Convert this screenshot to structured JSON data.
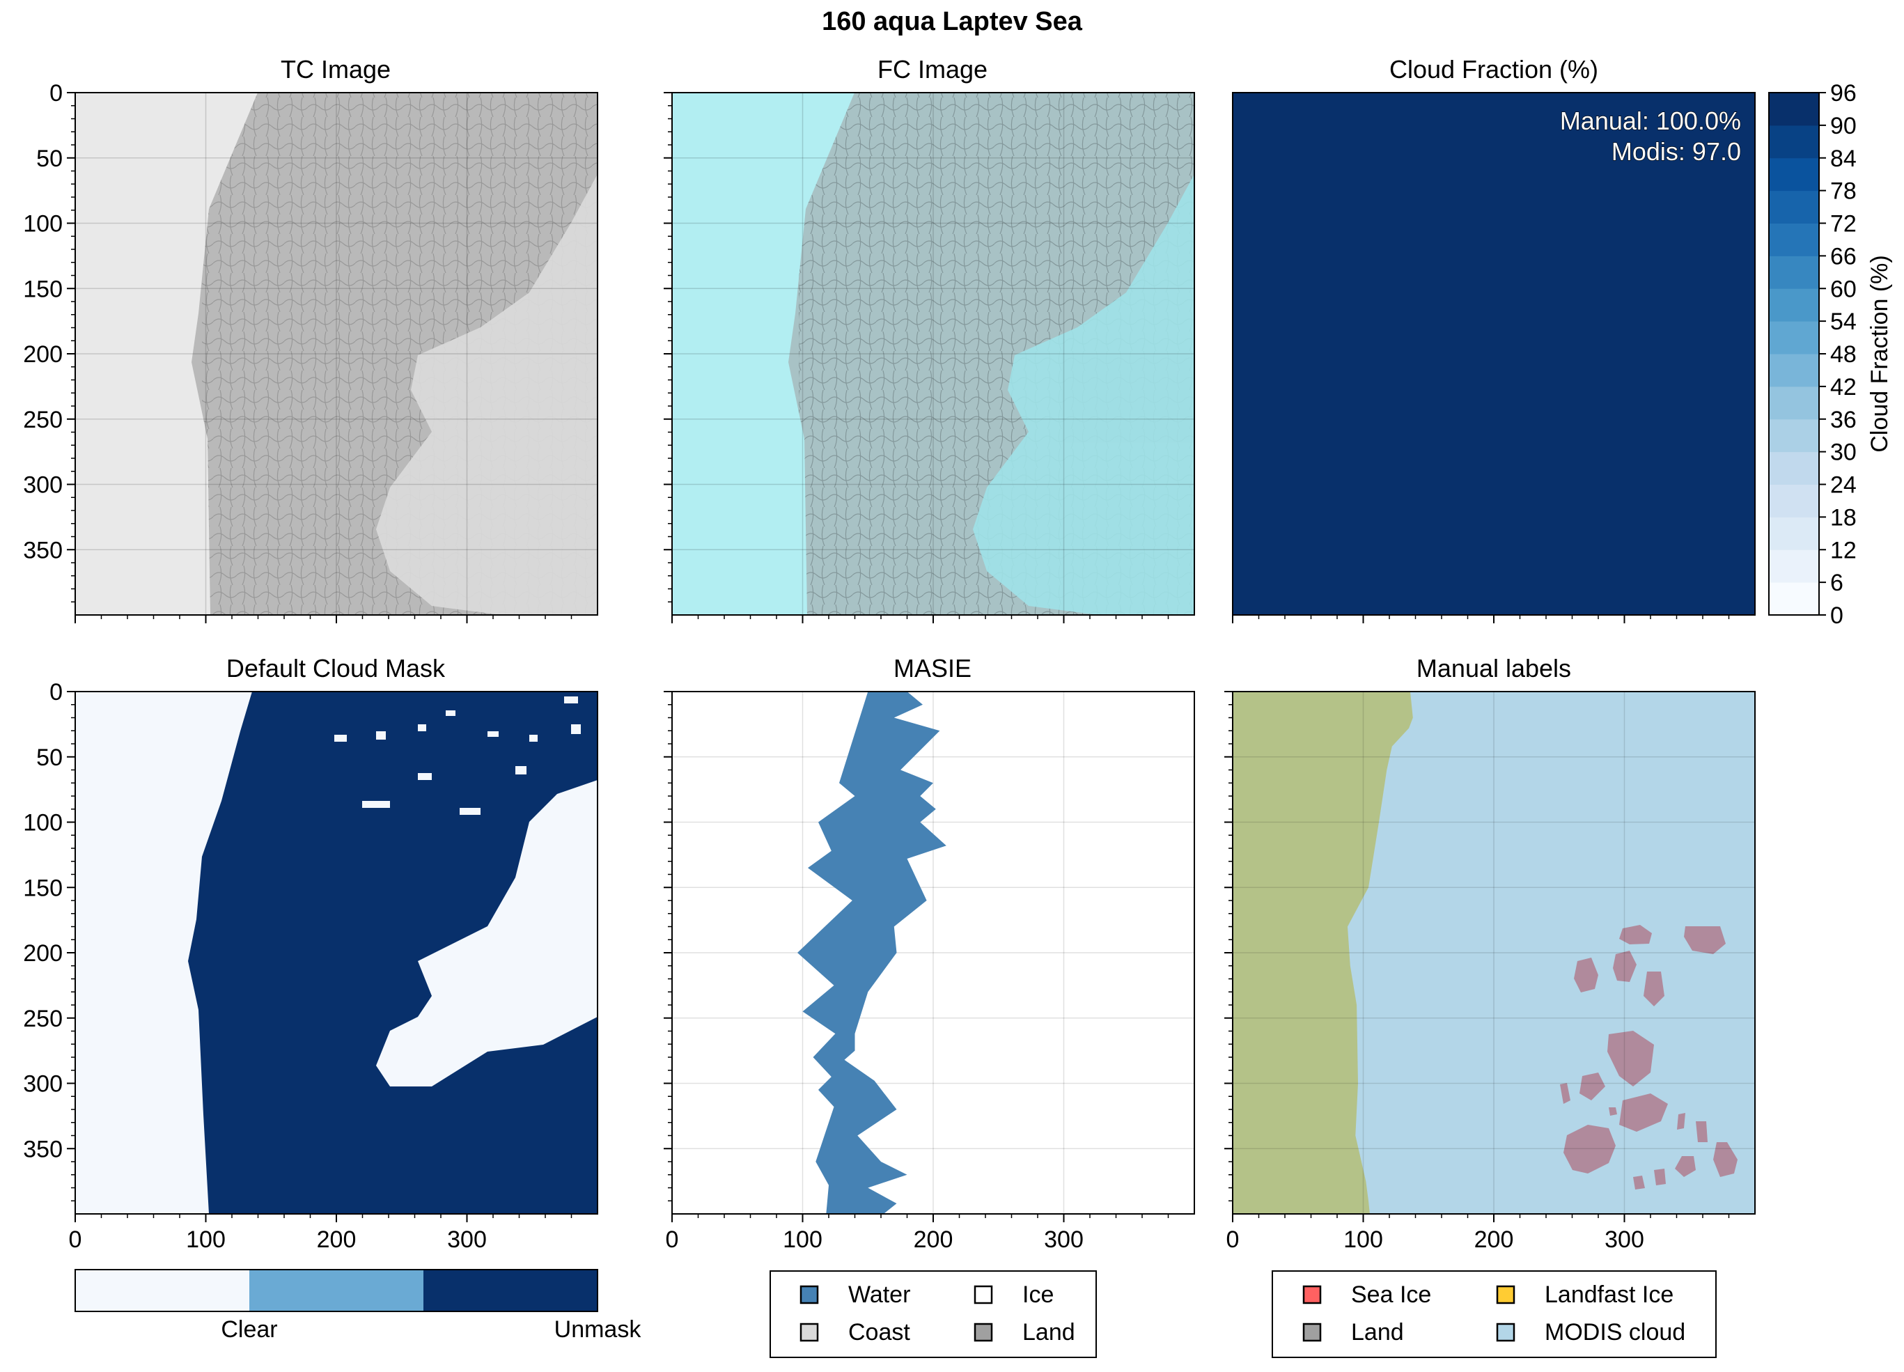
{
  "figure": {
    "suptitle": "160 aqua Laptev Sea"
  },
  "colors": {
    "navy": "#08306b",
    "light": "#f4f8fd",
    "mid": "#6aaad4",
    "masie": "#4682b4",
    "tc_bg": "#e9e9e9",
    "tc_ice": "#b9b9b9",
    "fc_bg": "#b2eef2",
    "fc_ice": "#a8c2c5",
    "land_olive": "#b4c288",
    "modis_cloud": "#b3d6e8",
    "sea_ice": "#ff6161",
    "landfast": "#ffcc33",
    "land_gray": "#a0a0a0",
    "coast": "#d9d9d9"
  },
  "chart_data": [
    {
      "type": "image",
      "title": "TC Image",
      "xlim": [
        0,
        400
      ],
      "ylim": [
        400,
        0
      ],
      "yticks": [
        0,
        50,
        100,
        150,
        200,
        250,
        300,
        350
      ],
      "ytick_labels": [
        "0",
        "50",
        "100",
        "150",
        "200",
        "250",
        "300",
        "350"
      ],
      "grid": true
    },
    {
      "type": "image",
      "title": "FC Image",
      "xlim": [
        0,
        400
      ],
      "ylim": [
        400,
        0
      ],
      "grid": true
    },
    {
      "type": "heatmap",
      "title": "Cloud Fraction (%)",
      "values": [
        [
          100
        ]
      ],
      "annotation": [
        "Manual: 100.0%",
        "Modis: 97.0"
      ],
      "manual_cloud_fraction_pct": 100.0,
      "modis_cloud_fraction": 97.0,
      "colorbar": {
        "label": "Cloud Fraction (%)",
        "min": 0,
        "max": 96,
        "step": 6,
        "tick_labels": [
          "0",
          "6",
          "12",
          "18",
          "24",
          "30",
          "36",
          "42",
          "48",
          "54",
          "60",
          "66",
          "72",
          "78",
          "84",
          "90",
          "96"
        ]
      },
      "grid": false
    },
    {
      "type": "heatmap",
      "title": "Default Cloud Mask",
      "xlim": [
        0,
        400
      ],
      "ylim": [
        400,
        0
      ],
      "xticks": [
        0,
        100,
        200,
        300
      ],
      "xtick_labels": [
        "0",
        "100",
        "200",
        "300"
      ],
      "yticks": [
        0,
        50,
        100,
        150,
        200,
        250,
        300,
        350
      ],
      "ytick_labels": [
        "0",
        "50",
        "100",
        "150",
        "200",
        "250",
        "300",
        "350"
      ],
      "categories": [
        "Clear",
        "",
        "Unmask"
      ],
      "colorbar_labels": [
        "Clear",
        "Unmask"
      ],
      "grid": false
    },
    {
      "type": "area",
      "title": "MASIE",
      "xlim": [
        0,
        400
      ],
      "ylim": [
        400,
        0
      ],
      "xticks": [
        0,
        100,
        200,
        300
      ],
      "xtick_labels": [
        "0",
        "100",
        "200",
        "300"
      ],
      "left_edge": [
        [
          150,
          0
        ],
        [
          128,
          70
        ],
        [
          140,
          80
        ],
        [
          112,
          100
        ],
        [
          122,
          122
        ],
        [
          104,
          135
        ],
        [
          138,
          160
        ],
        [
          96,
          200
        ],
        [
          124,
          225
        ],
        [
          100,
          245
        ],
        [
          125,
          262
        ],
        [
          108,
          280
        ],
        [
          122,
          295
        ],
        [
          112,
          305
        ],
        [
          124,
          318
        ],
        [
          110,
          360
        ],
        [
          120,
          378
        ],
        [
          118,
          400
        ]
      ],
      "right_edge": [
        [
          180,
          0
        ],
        [
          192,
          10
        ],
        [
          170,
          20
        ],
        [
          205,
          30
        ],
        [
          175,
          60
        ],
        [
          200,
          70
        ],
        [
          190,
          80
        ],
        [
          202,
          90
        ],
        [
          190,
          100
        ],
        [
          210,
          118
        ],
        [
          180,
          128
        ],
        [
          195,
          160
        ],
        [
          170,
          180
        ],
        [
          172,
          200
        ],
        [
          150,
          230
        ],
        [
          140,
          262
        ],
        [
          140,
          275
        ],
        [
          132,
          282
        ],
        [
          155,
          298
        ],
        [
          172,
          320
        ],
        [
          142,
          340
        ],
        [
          160,
          360
        ],
        [
          180,
          370
        ],
        [
          150,
          380
        ],
        [
          172,
          392
        ],
        [
          162,
          400
        ]
      ],
      "legend": [
        "Water",
        "Ice",
        "Coast",
        "Land"
      ],
      "grid": true
    },
    {
      "type": "area",
      "title": "Manual labels",
      "xlim": [
        0,
        400
      ],
      "ylim": [
        400,
        0
      ],
      "xticks": [
        0,
        100,
        200,
        300
      ],
      "xtick_labels": [
        "0",
        "100",
        "200",
        "300"
      ],
      "land_boundary": [
        [
          136,
          0
        ],
        [
          138,
          20
        ],
        [
          135,
          28
        ],
        [
          122,
          42
        ],
        [
          118,
          60
        ],
        [
          112,
          100
        ],
        [
          104,
          150
        ],
        [
          88,
          180
        ],
        [
          90,
          210
        ],
        [
          95,
          240
        ],
        [
          96,
          300
        ],
        [
          94,
          340
        ],
        [
          102,
          375
        ],
        [
          104,
          390
        ],
        [
          105,
          400
        ]
      ],
      "legend": [
        "Sea Ice",
        "Landfast Ice",
        "Land",
        "MODIS cloud"
      ],
      "grid": true
    }
  ]
}
